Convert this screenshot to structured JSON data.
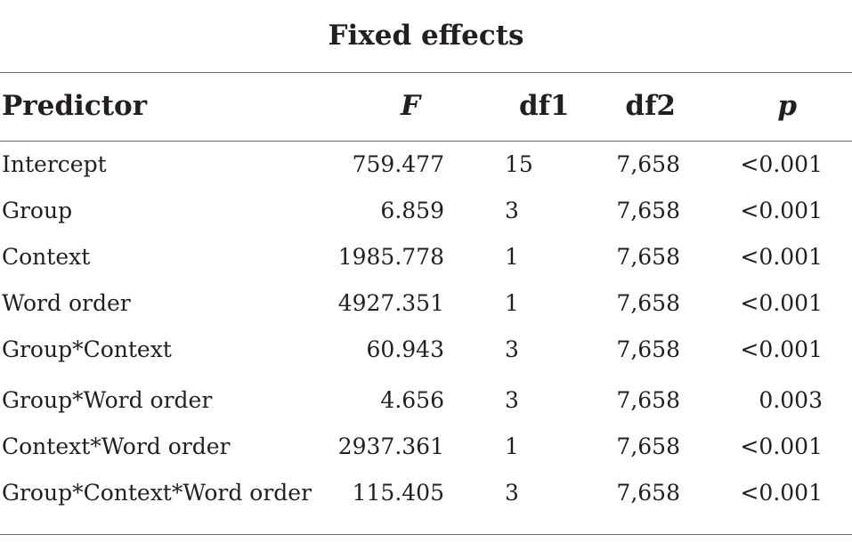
{
  "table": {
    "caption": "Fixed effects",
    "headers": {
      "predictor": "Predictor",
      "f": "F",
      "df1": "df1",
      "df2": "df2",
      "p": "p"
    },
    "rows": [
      {
        "predictor": "Intercept",
        "f": "759.477",
        "df1": "15",
        "df2": "7,658",
        "p": "<0.001"
      },
      {
        "predictor": "Group",
        "f": "6.859",
        "df1": "3",
        "df2": "7,658",
        "p": "<0.001"
      },
      {
        "predictor": "Context",
        "f": "1985.778",
        "df1": "1",
        "df2": "7,658",
        "p": "<0.001"
      },
      {
        "predictor": "Word order",
        "f": "4927.351",
        "df1": "1",
        "df2": "7,658",
        "p": "<0.001"
      },
      {
        "predictor": "Group*Context",
        "f": "60.943",
        "df1": "3",
        "df2": "7,658",
        "p": "<0.001"
      },
      {
        "predictor": "Group*Word order",
        "f": "4.656",
        "df1": "3",
        "df2": "7,658",
        "p": "0.003"
      },
      {
        "predictor": "Context*Word order",
        "f": "2937.361",
        "df1": "1",
        "df2": "7,658",
        "p": "<0.001"
      },
      {
        "predictor": "Group*Context*Word order",
        "f": "115.405",
        "df1": "3",
        "df2": "7,658",
        "p": "<0.001"
      }
    ]
  }
}
